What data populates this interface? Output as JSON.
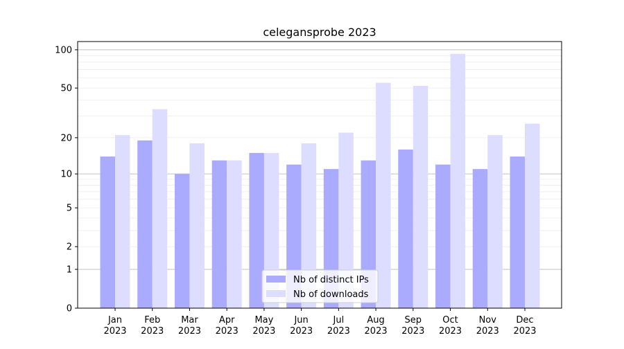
{
  "chart_data": {
    "type": "bar",
    "title": "celegansprobe 2023",
    "categories": [
      "Jan\n2023",
      "Feb\n2023",
      "Mar\n2023",
      "Apr\n2023",
      "May\n2023",
      "Jun\n2023",
      "Jul\n2023",
      "Aug\n2023",
      "Sep\n2023",
      "Oct\n2023",
      "Nov\n2023",
      "Dec\n2023"
    ],
    "series": [
      {
        "name": "Nb of distinct IPs",
        "color": "#aaaaff",
        "values": [
          14,
          19,
          10,
          13,
          15,
          12,
          11,
          13,
          16,
          12,
          11,
          14
        ]
      },
      {
        "name": "Nb of downloads",
        "color": "#ddddff",
        "values": [
          21,
          34,
          18,
          13,
          15,
          18,
          22,
          55,
          52,
          93,
          21,
          26
        ]
      }
    ],
    "yscale": "log(1+y)",
    "yticks": [
      0,
      1,
      2,
      5,
      10,
      20,
      50,
      100
    ],
    "ylim": [
      0,
      116
    ],
    "xlabel": "",
    "ylabel": "",
    "grid": true,
    "legend": "bottom-center"
  }
}
